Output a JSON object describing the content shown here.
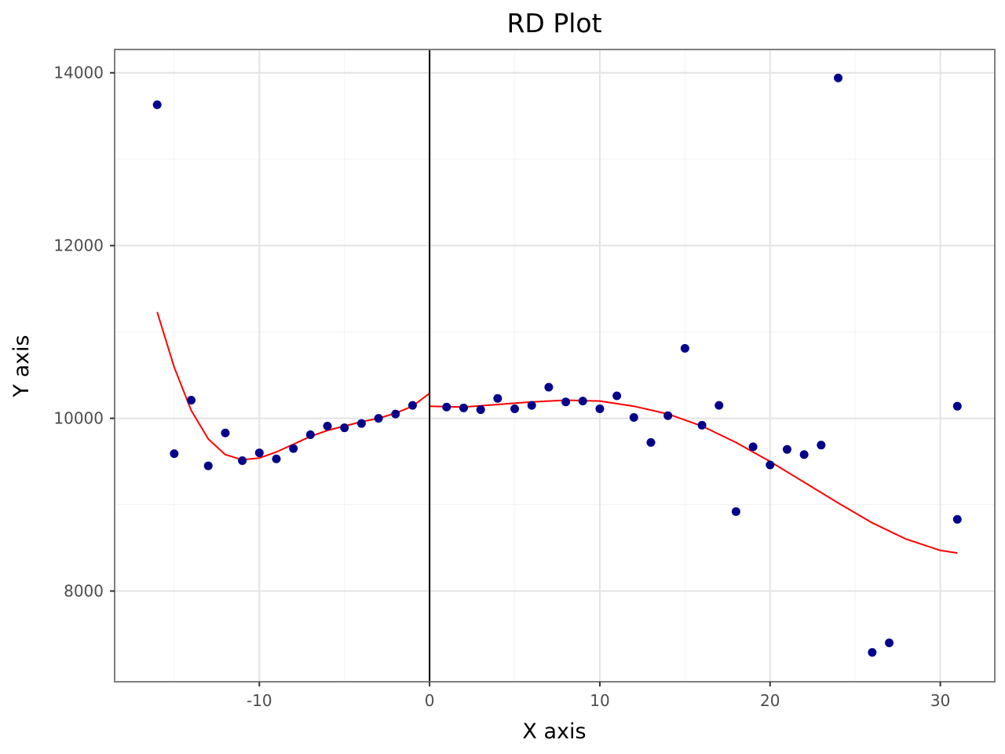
{
  "chart_data": {
    "type": "scatter",
    "title": "RD Plot",
    "xlabel": "X axis",
    "ylabel": "Y axis",
    "xlim": [
      -18.5,
      33.2
    ],
    "ylim": [
      6950,
      14270
    ],
    "x_ticks": [
      -10,
      0,
      10,
      20,
      30
    ],
    "y_ticks": [
      8000,
      10000,
      12000,
      14000
    ],
    "x_tick_labels": [
      "-10",
      "0",
      "10",
      "20",
      "30"
    ],
    "y_tick_labels": [
      "8000",
      "10000",
      "12000",
      "14000"
    ],
    "grid": true,
    "cutoff": 0,
    "colors": {
      "points": "#00008b",
      "fit": "#ff0000",
      "cutoff": "#000000",
      "grid_major": "#e3e3e3",
      "grid_minor": "#f3f3f3",
      "panel_border": "#7f7f7f"
    },
    "points": [
      [
        -16,
        13630
      ],
      [
        -15,
        9590
      ],
      [
        -14,
        10210
      ],
      [
        -13,
        9450
      ],
      [
        -12,
        9830
      ],
      [
        -11,
        9510
      ],
      [
        -10,
        9600
      ],
      [
        -9,
        9530
      ],
      [
        -8,
        9650
      ],
      [
        -7,
        9810
      ],
      [
        -6,
        9910
      ],
      [
        -5,
        9890
      ],
      [
        -4,
        9940
      ],
      [
        -3,
        10000
      ],
      [
        -2,
        10050
      ],
      [
        -1,
        10150
      ],
      [
        1,
        10130
      ],
      [
        2,
        10120
      ],
      [
        3,
        10100
      ],
      [
        4,
        10230
      ],
      [
        5,
        10110
      ],
      [
        6,
        10150
      ],
      [
        7,
        10360
      ],
      [
        8,
        10190
      ],
      [
        9,
        10200
      ],
      [
        10,
        10110
      ],
      [
        11,
        10260
      ],
      [
        12,
        10010
      ],
      [
        13,
        9720
      ],
      [
        14,
        10030
      ],
      [
        15,
        10810
      ],
      [
        16,
        9920
      ],
      [
        17,
        10150
      ],
      [
        18,
        8920
      ],
      [
        19,
        9670
      ],
      [
        20,
        9460
      ],
      [
        21,
        9640
      ],
      [
        22,
        9580
      ],
      [
        23,
        9690
      ],
      [
        24,
        13940
      ],
      [
        26,
        7290
      ],
      [
        27,
        7400
      ],
      [
        31,
        10140
      ],
      [
        31,
        8830
      ]
    ],
    "fit_left": [
      [
        -16,
        11230
      ],
      [
        -15,
        10590
      ],
      [
        -14,
        10090
      ],
      [
        -13,
        9760
      ],
      [
        -12,
        9580
      ],
      [
        -11,
        9520
      ],
      [
        -10,
        9540
      ],
      [
        -9,
        9610
      ],
      [
        -8,
        9700
      ],
      [
        -7,
        9790
      ],
      [
        -6,
        9860
      ],
      [
        -5,
        9910
      ],
      [
        -4,
        9960
      ],
      [
        -3,
        10000
      ],
      [
        -2,
        10060
      ],
      [
        -1,
        10140
      ],
      [
        0,
        10290
      ]
    ],
    "fit_right": [
      [
        0,
        10140
      ],
      [
        2,
        10130
      ],
      [
        4,
        10160
      ],
      [
        6,
        10190
      ],
      [
        8,
        10210
      ],
      [
        10,
        10200
      ],
      [
        12,
        10140
      ],
      [
        14,
        10050
      ],
      [
        16,
        9910
      ],
      [
        18,
        9720
      ],
      [
        20,
        9500
      ],
      [
        22,
        9260
      ],
      [
        24,
        9020
      ],
      [
        26,
        8790
      ],
      [
        28,
        8600
      ],
      [
        30,
        8470
      ],
      [
        31,
        8440
      ]
    ]
  }
}
